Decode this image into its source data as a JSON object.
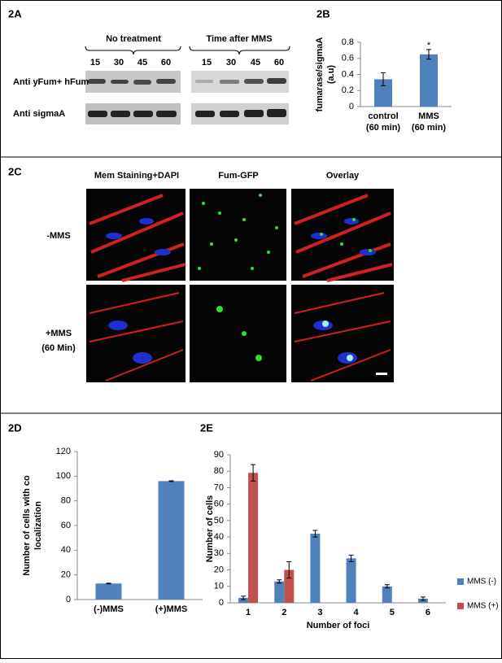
{
  "panels": {
    "a": {
      "label": "2A",
      "groups": [
        {
          "title": "No treatment",
          "lanes": [
            "15",
            "30",
            "45",
            "60"
          ]
        },
        {
          "title": "Time after MMS",
          "lanes": [
            "15",
            "30",
            "45",
            "60"
          ]
        }
      ],
      "rows": [
        "Anti yFum+ hFum",
        "Anti sigmaA"
      ]
    },
    "c": {
      "label": "2C",
      "columns": [
        "Mem Staining+DAPI",
        "Fum-GFP",
        "Overlay"
      ],
      "rows": [
        [
          "-MMS"
        ],
        [
          "+MMS",
          "(60 Min)"
        ]
      ]
    }
  },
  "chart_data": [
    {
      "type": "bar",
      "panel_label": "2B",
      "ylabel": [
        "fumarase/sigmaA",
        "(a.u)"
      ],
      "categories": [
        [
          "control",
          "(60 min)"
        ],
        [
          "MMS",
          "(60 min)"
        ]
      ],
      "series": [
        {
          "color": "#4f81bd",
          "values": [
            0.34,
            0.65
          ],
          "errors": [
            0.08,
            0.06
          ]
        }
      ],
      "annotation": "*",
      "ylim": [
        0,
        0.8
      ],
      "yticks": [
        0,
        0.2,
        0.4,
        0.6,
        0.8
      ]
    },
    {
      "type": "bar",
      "panel_label": "2D",
      "ylabel": [
        "Number of cells with co",
        "localization"
      ],
      "categories": [
        [
          "(-)MMS"
        ],
        [
          "(+)MMS"
        ]
      ],
      "series": [
        {
          "color": "#4f81bd",
          "values": [
            13,
            96
          ],
          "errors": [
            0.3,
            0.3
          ]
        }
      ],
      "ylim": [
        0,
        120
      ],
      "yticks": [
        0,
        20,
        40,
        60,
        80,
        100,
        120
      ]
    },
    {
      "type": "bar",
      "panel_label": "2E",
      "ylabel": [
        "Number of cells"
      ],
      "xlabel": "Number of foci",
      "categories": [
        [
          "1"
        ],
        [
          "2"
        ],
        [
          "3"
        ],
        [
          "4"
        ],
        [
          "5"
        ],
        [
          "6"
        ]
      ],
      "series": [
        {
          "name": "MMS (-)",
          "color": "#4f81bd",
          "values": [
            3,
            13,
            42,
            27,
            10,
            2.5
          ],
          "errors": [
            1,
            1,
            2,
            2,
            1,
            1
          ]
        },
        {
          "name": "MMS (+)",
          "color": "#c0504d",
          "values": [
            79,
            20,
            null,
            null,
            null,
            null
          ],
          "errors": [
            5,
            5,
            null,
            null,
            null,
            null
          ]
        }
      ],
      "ylim": [
        0,
        90
      ],
      "yticks": [
        0,
        10,
        20,
        30,
        40,
        50,
        60,
        70,
        80,
        90
      ],
      "legend": "right"
    }
  ]
}
